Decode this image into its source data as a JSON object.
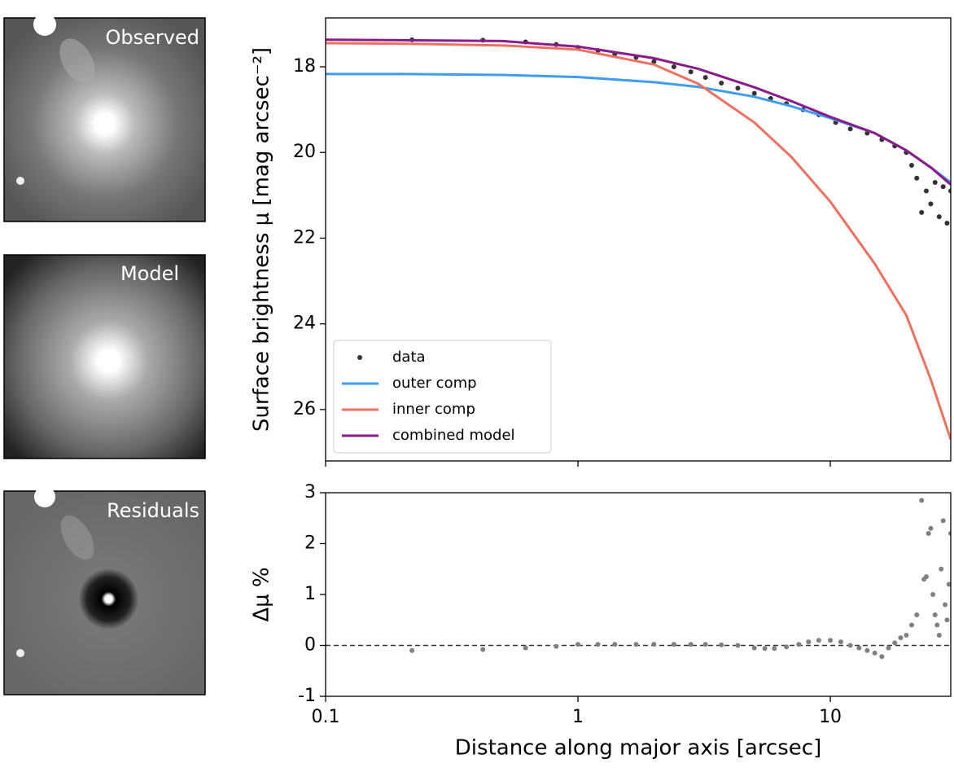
{
  "panels": [
    {
      "label": "Observed"
    },
    {
      "label": "Model"
    },
    {
      "label": "Residuals"
    }
  ],
  "chart_data": [
    {
      "type": "line",
      "ylabel": "Surface brightness μ [mag arcsec⁻²]",
      "xlog": true,
      "xlim": [
        0.1,
        30
      ],
      "xticks": [
        0.1,
        1,
        10
      ],
      "ylim": [
        16.86,
        27.2
      ],
      "yinvert": true,
      "yticks": [
        18,
        20,
        22,
        24,
        26
      ],
      "legend": "lower left",
      "series": [
        {
          "name": "data",
          "type": "scatter",
          "color": "#333333",
          "x": [
            0.22,
            0.42,
            0.62,
            0.82,
            1.0,
            1.2,
            1.4,
            1.7,
            2.0,
            2.4,
            2.8,
            3.2,
            3.7,
            4.3,
            5.0,
            5.8,
            6.7,
            7.8,
            9.0,
            10.5,
            12,
            14,
            16,
            18,
            20,
            21,
            22,
            23,
            24,
            25,
            26,
            27,
            28,
            29,
            30
          ],
          "values": [
            17.37,
            17.38,
            17.42,
            17.48,
            17.55,
            17.62,
            17.7,
            17.78,
            17.88,
            18.0,
            18.12,
            18.25,
            18.38,
            18.5,
            18.62,
            18.74,
            18.86,
            19.0,
            19.12,
            19.3,
            19.45,
            19.55,
            19.7,
            19.85,
            20.0,
            20.3,
            20.6,
            21.4,
            20.9,
            21.2,
            20.7,
            21.5,
            20.8,
            21.65,
            20.9
          ]
        },
        {
          "name": "outer comp",
          "type": "line",
          "color": "#3d9df0",
          "x": [
            0.1,
            0.2,
            0.5,
            1,
            2,
            3,
            5,
            7,
            10,
            15,
            20,
            25,
            30
          ],
          "values": [
            18.17,
            18.17,
            18.19,
            18.24,
            18.36,
            18.47,
            18.7,
            18.92,
            19.2,
            19.55,
            19.95,
            20.35,
            20.7
          ]
        },
        {
          "name": "inner comp",
          "type": "line",
          "color": "#f07060",
          "x": [
            0.1,
            0.2,
            0.5,
            1,
            2,
            3,
            5,
            7,
            10,
            15,
            20,
            25,
            30
          ],
          "values": [
            17.45,
            17.46,
            17.5,
            17.6,
            17.95,
            18.4,
            19.3,
            20.1,
            21.15,
            22.6,
            23.8,
            25.3,
            26.7
          ]
        },
        {
          "name": "combined model",
          "type": "line",
          "color": "#8b1a8b",
          "x": [
            0.1,
            0.2,
            0.5,
            1,
            2,
            3,
            5,
            7,
            10,
            15,
            20,
            25,
            30
          ],
          "values": [
            17.37,
            17.38,
            17.4,
            17.53,
            17.8,
            18.05,
            18.48,
            18.8,
            19.17,
            19.55,
            19.95,
            20.35,
            20.75
          ]
        }
      ]
    },
    {
      "type": "scatter",
      "ylabel": "Δμ %",
      "xlabel": "Distance along major axis [arcsec]",
      "xlog": true,
      "xlim": [
        0.1,
        30
      ],
      "xticks": [
        0.1,
        1,
        10
      ],
      "ylim": [
        -1,
        3
      ],
      "yticks": [
        -1,
        0,
        1,
        2,
        3
      ],
      "hline": 0,
      "series": [
        {
          "name": "residual",
          "type": "scatter",
          "color": "#808080",
          "x": [
            0.22,
            0.42,
            0.62,
            0.82,
            1.0,
            1.2,
            1.4,
            1.7,
            2.0,
            2.4,
            2.8,
            3.2,
            3.7,
            4.3,
            5.0,
            5.5,
            6.0,
            6.7,
            7.5,
            8.2,
            9.0,
            10,
            11,
            12,
            13,
            14,
            15,
            16,
            17,
            18,
            19,
            20,
            21,
            22,
            23,
            23.5,
            24,
            24.5,
            25,
            25.5,
            26,
            26.5,
            27,
            27.5,
            28,
            28.5,
            29,
            29.5,
            30
          ],
          "values": [
            -0.1,
            -0.08,
            -0.05,
            -0.02,
            0.02,
            0.02,
            0.02,
            0.02,
            0.02,
            0.02,
            0.02,
            0.02,
            0.01,
            0.0,
            -0.05,
            -0.06,
            -0.06,
            -0.03,
            0.02,
            0.07,
            0.1,
            0.1,
            0.07,
            0.0,
            -0.05,
            -0.1,
            -0.15,
            -0.22,
            -0.05,
            0.05,
            0.15,
            0.2,
            0.4,
            0.6,
            2.85,
            1.3,
            1.35,
            2.2,
            2.3,
            1.0,
            0.6,
            0.4,
            0.2,
            1.5,
            2.45,
            0.8,
            0.5,
            1.2,
            2.2
          ]
        }
      ]
    }
  ]
}
